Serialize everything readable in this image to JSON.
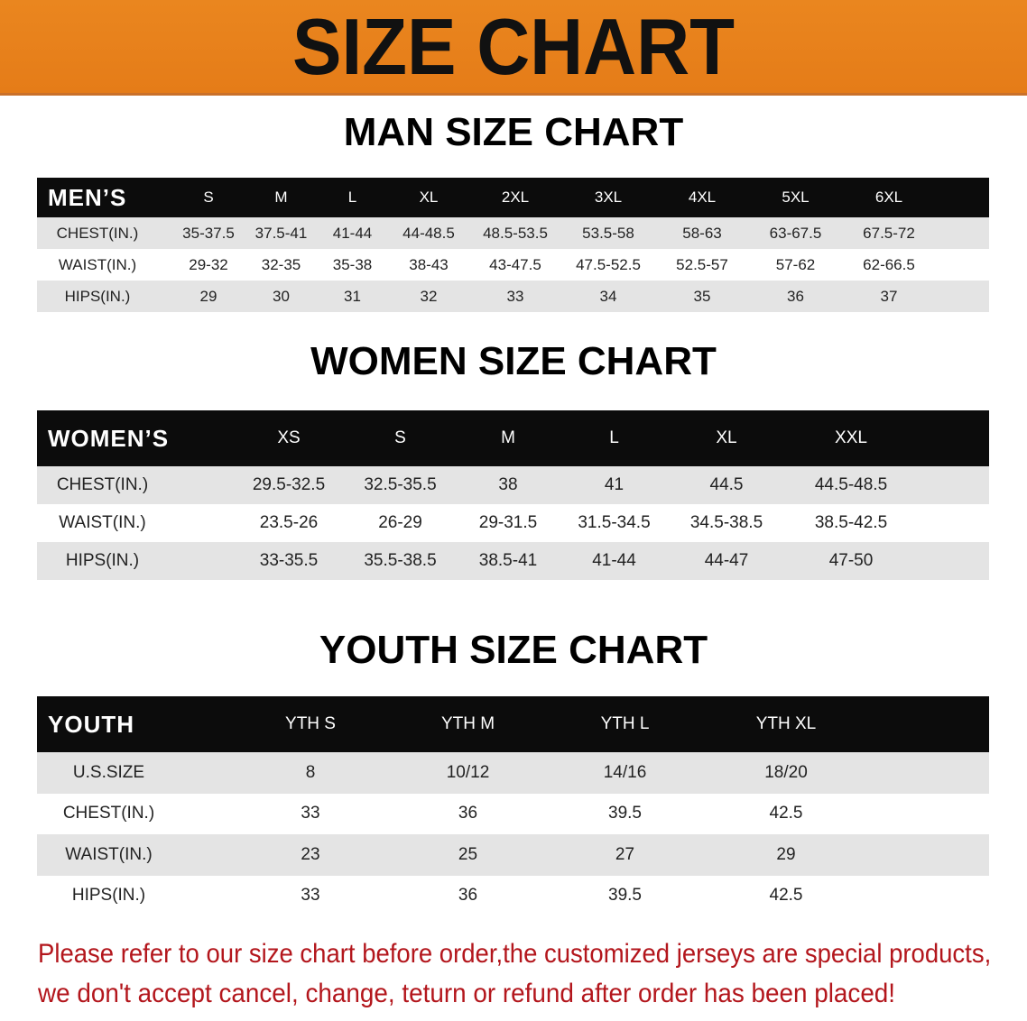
{
  "banner": {
    "title": "SIZE CHART",
    "color": "#e8801c"
  },
  "men": {
    "title": "MAN SIZE CHART",
    "header": "MEN’S",
    "sizes": [
      "S",
      "M",
      "L",
      "XL",
      "2XL",
      "3XL",
      "4XL",
      "5XL",
      "6XL"
    ],
    "rows": [
      {
        "label": "CHEST(IN.)",
        "values": [
          "35-37.5",
          "37.5-41",
          "41-44",
          "44-48.5",
          "48.5-53.5",
          "53.5-58",
          "58-63",
          "63-67.5",
          "67.5-72"
        ]
      },
      {
        "label": "WAIST(IN.)",
        "values": [
          "29-32",
          "32-35",
          "35-38",
          "38-43",
          "43-47.5",
          "47.5-52.5",
          "52.5-57",
          "57-62",
          "62-66.5"
        ]
      },
      {
        "label": "HIPS(IN.)",
        "values": [
          "29",
          "30",
          "31",
          "32",
          "33",
          "34",
          "35",
          "36",
          "37"
        ]
      }
    ]
  },
  "women": {
    "title": "WOMEN SIZE CHART",
    "header": "WOMEN’S",
    "sizes": [
      "XS",
      "S",
      "M",
      "L",
      "XL",
      "XXL"
    ],
    "rows": [
      {
        "label": "CHEST(IN.)",
        "values": [
          "29.5-32.5",
          "32.5-35.5",
          "38",
          "41",
          "44.5",
          "44.5-48.5"
        ]
      },
      {
        "label": "WAIST(IN.)",
        "values": [
          "23.5-26",
          "26-29",
          "29-31.5",
          "31.5-34.5",
          "34.5-38.5",
          "38.5-42.5"
        ]
      },
      {
        "label": "HIPS(IN.)",
        "values": [
          "33-35.5",
          "35.5-38.5",
          "38.5-41",
          "41-44",
          "44-47",
          "47-50"
        ]
      }
    ]
  },
  "youth": {
    "title": "YOUTH SIZE CHART",
    "header": "YOUTH",
    "sizes": [
      "YTH S",
      "YTH M",
      "YTH L",
      "YTH XL"
    ],
    "rows": [
      {
        "label": "U.S.SIZE",
        "values": [
          "8",
          "10/12",
          "14/16",
          "18/20"
        ]
      },
      {
        "label": "CHEST(IN.)",
        "values": [
          "33",
          "36",
          "39.5",
          "42.5"
        ]
      },
      {
        "label": "WAIST(IN.)",
        "values": [
          "23",
          "25",
          "27",
          "29"
        ]
      },
      {
        "label": "HIPS(IN.)",
        "values": [
          "33",
          "36",
          "39.5",
          "42.5"
        ]
      }
    ]
  },
  "notice": {
    "line1": "Please refer to our size chart before order,the customized jerseys are special products,",
    "line2": "we don't accept cancel, change, teturn or refund after order has been placed!",
    "color": "#b3161c"
  }
}
